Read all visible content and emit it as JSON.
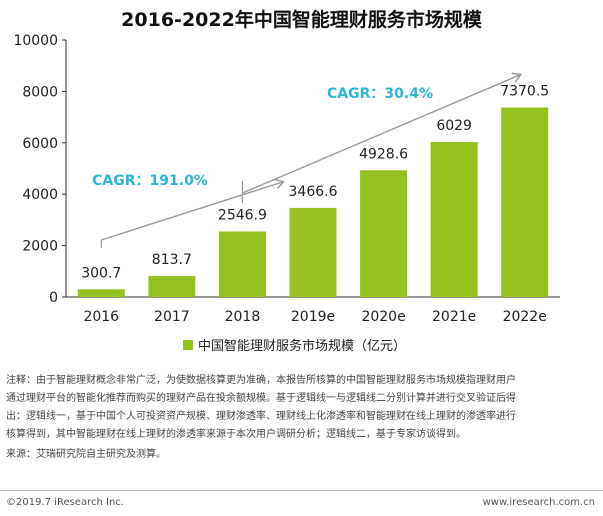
{
  "chart_data": {
    "type": "bar",
    "title": "2016-2022年中国智能理财服务市场规模",
    "categories": [
      "2016",
      "2017",
      "2018",
      "2019e",
      "2020e",
      "2021e",
      "2022e"
    ],
    "series": [
      {
        "name": "中国智能理财服务市场规模（亿元）",
        "values": [
          300.7,
          813.7,
          2546.9,
          3466.6,
          4928.6,
          6029,
          7370.5
        ]
      }
    ],
    "data_labels": [
      "300.7",
      "813.7",
      "2546.9",
      "3466.6",
      "4928.6",
      "6029",
      "7370.5"
    ],
    "ylim": [
      0,
      10000
    ],
    "yticks": [
      0,
      2000,
      4000,
      6000,
      8000,
      10000
    ],
    "ytick_labels": [
      "0",
      "2000",
      "4000",
      "6000",
      "8000",
      "10000"
    ],
    "grid": false,
    "legend_position": "bottom-center",
    "annotations": [
      {
        "text": "CAGR：191.0%",
        "span": [
          "2016",
          "2018"
        ]
      },
      {
        "text": "CAGR：30.4%",
        "span": [
          "2018",
          "2022e"
        ]
      }
    ],
    "colors": {
      "bar": "#95c11f",
      "annotation": "#2cb5d6",
      "arrow": "#999999"
    }
  },
  "notes": {
    "line1": "注释：由于智能理财概念非常广泛，为使数据核算更为准确，本报告所核算的中国智能理财服务市场规模指理财用户",
    "line2": "通过理财平台的智能化推荐而购买的理财产品在投余额规模。基于逻辑线一与逻辑线二分别计算并进行交叉验证后得",
    "line3": "出：逻辑线一，基于中国个人可投资资产规模、理财渗透率、理财线上化渗透率和智能理财在线上理财的渗透率进行",
    "line4": "核算得到，其中智能理财在线上理财的渗透率来源于本次用户调研分析；逻辑线二，基于专家访谈得到。",
    "source": "来源：艾瑞研究院自主研究及测算。"
  },
  "footer": {
    "copyright": "©2019.7 iResearch Inc.",
    "website": "www.iresearch.com.cn"
  }
}
